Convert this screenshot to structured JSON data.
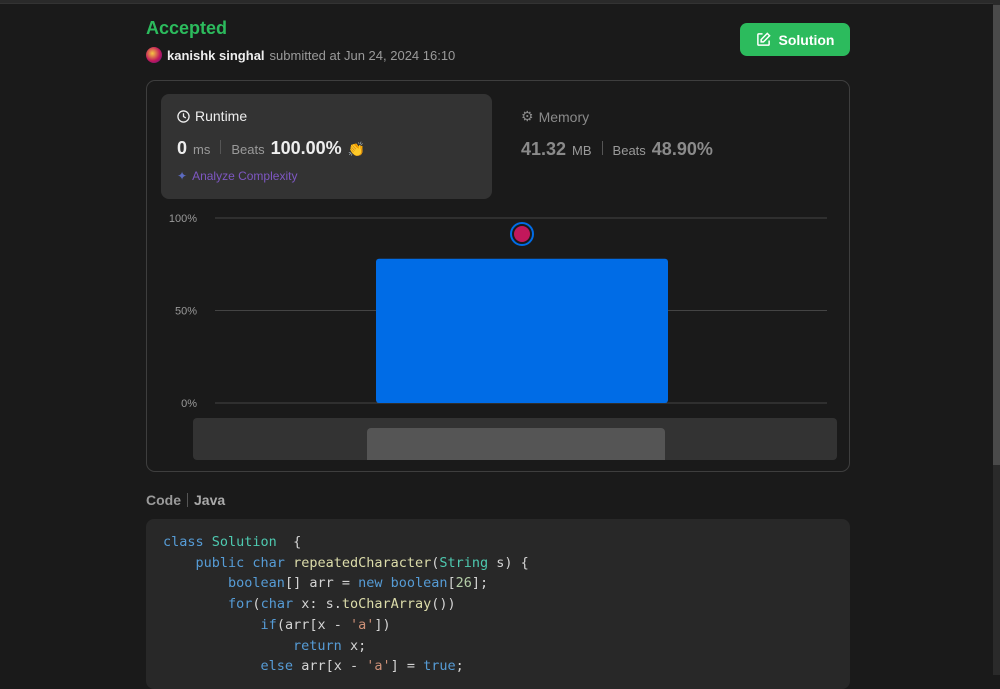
{
  "header": {
    "status": "Accepted",
    "user": "kanishk singhal",
    "submitted_text": "submitted at Jun 24, 2024 16:10",
    "solution_label": "Solution"
  },
  "runtime": {
    "title": "Runtime",
    "value": "0",
    "unit": "ms",
    "beats_label": "Beats",
    "beats": "100.00%",
    "analyze_label": "Analyze Complexity"
  },
  "memory": {
    "title": "Memory",
    "value": "41.32",
    "unit": "MB",
    "beats_label": "Beats",
    "beats": "48.90%"
  },
  "colors": {
    "accepted": "#2cbb5d",
    "bar": "#006ce6",
    "analyze": "#7e57c2"
  },
  "chart_data": {
    "type": "bar",
    "ylim": [
      0,
      100
    ],
    "yticks": [
      "100%",
      "50%",
      "0%"
    ],
    "values": [
      78
    ],
    "grid": true
  },
  "code": {
    "label": "Code",
    "language": "Java",
    "lines": [
      [
        [
          "k",
          "class "
        ],
        [
          "t",
          "Solution"
        ],
        [
          "",
          "  {"
        ]
      ],
      [
        [
          "",
          "    "
        ],
        [
          "k",
          "public char "
        ],
        [
          "f",
          "repeatedCharacter"
        ],
        [
          "",
          "("
        ],
        [
          "t",
          "String"
        ],
        [
          "",
          " s) {"
        ]
      ],
      [
        [
          "",
          "        "
        ],
        [
          "k",
          "boolean"
        ],
        [
          "",
          "[] arr = "
        ],
        [
          "k",
          "new boolean"
        ],
        [
          "",
          "["
        ],
        [
          "n",
          "26"
        ],
        [
          "",
          "];"
        ]
      ],
      [
        [
          "",
          "        "
        ],
        [
          "k",
          "for"
        ],
        [
          "",
          "("
        ],
        [
          "k",
          "char"
        ],
        [
          "",
          " x: s."
        ],
        [
          "f",
          "toCharArray"
        ],
        [
          "",
          "())"
        ]
      ],
      [
        [
          "",
          "            "
        ],
        [
          "k",
          "if"
        ],
        [
          "",
          "(arr[x - "
        ],
        [
          "s",
          "'a'"
        ],
        [
          "",
          "])"
        ]
      ],
      [
        [
          "",
          "                "
        ],
        [
          "k",
          "return"
        ],
        [
          "",
          " x;"
        ]
      ],
      [
        [
          "",
          "            "
        ],
        [
          "k",
          "else"
        ],
        [
          "",
          " arr[x - "
        ],
        [
          "s",
          "'a'"
        ],
        [
          "",
          "] = "
        ],
        [
          "k",
          "true"
        ],
        [
          "",
          ";"
        ]
      ]
    ]
  }
}
